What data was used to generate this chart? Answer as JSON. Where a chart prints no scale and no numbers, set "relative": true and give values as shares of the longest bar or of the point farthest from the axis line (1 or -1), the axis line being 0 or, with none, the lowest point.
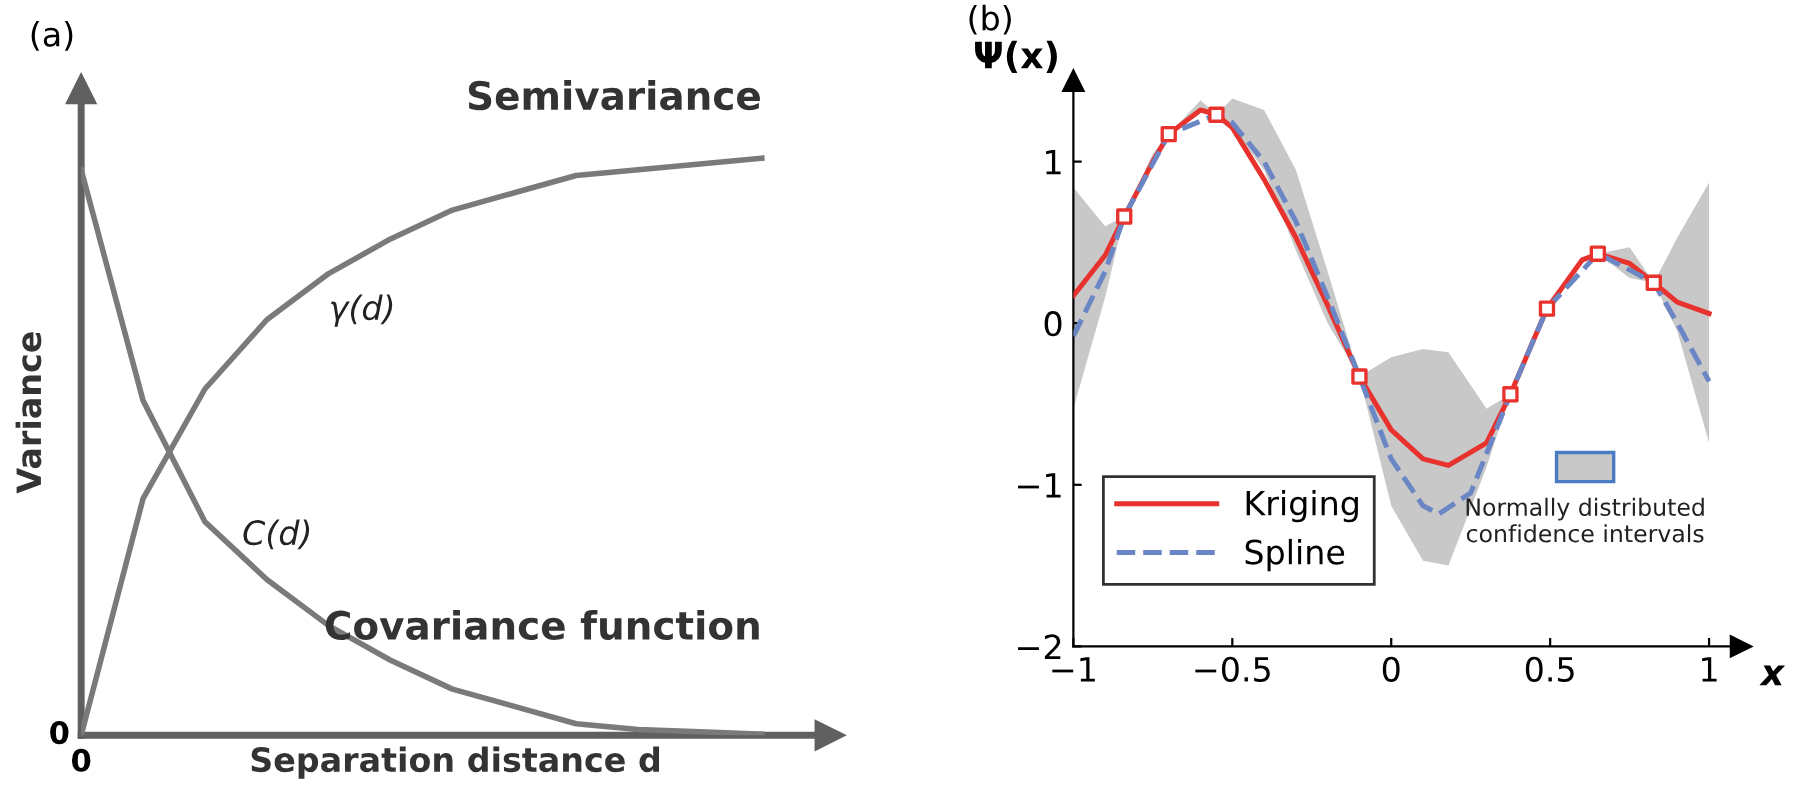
{
  "chart_data": [
    {
      "type": "line",
      "title": "(a)",
      "xlabel": "Separation distance d",
      "ylabel": "Variance",
      "relative": true,
      "legend": false,
      "grid": false,
      "categories": [
        null,
        null,
        null,
        null,
        null,
        null,
        null,
        null,
        null,
        null,
        null,
        null
      ],
      "series": [
        {
          "name": "Semivariance",
          "color": "#7a7a7a",
          "values": [
            0,
            0.41,
            0.6,
            0.72,
            0.8,
            0.86,
            0.91,
            0.94,
            0.97,
            0.98,
            0.99,
            1.0
          ]
        },
        {
          "name": "Covariance function",
          "color": "#7a7a7a",
          "values": [
            0.98,
            0.58,
            0.37,
            0.27,
            0.19,
            0.13,
            0.08,
            0.05,
            0.02,
            0.01,
            0.006,
            0.002
          ]
        }
      ],
      "annotations": [
        "γ(d)",
        "C(d)",
        "0",
        "0"
      ]
    },
    {
      "type": "line",
      "title": "(b)",
      "xlabel": "x",
      "ylabel": "Ψ(x)",
      "legend": "bottom left",
      "grid": false,
      "xlim": [
        -1,
        1.1
      ],
      "ylim": [
        -2,
        1.5
      ],
      "xticks": [
        -1,
        -0.5,
        0,
        0.5,
        1
      ],
      "yticks": [
        -2,
        -1,
        0,
        1
      ],
      "series": [
        {
          "name": "Kriging",
          "color": "#e8322d",
          "line_style": "solid",
          "marker": "none",
          "x": [
            -1,
            -0.9,
            -0.84,
            -0.75,
            -0.7,
            -0.6,
            -0.55,
            -0.5,
            -0.4,
            -0.3,
            -0.2,
            -0.1,
            0,
            0.1,
            0.18,
            0.3,
            0.375,
            0.49,
            0.6,
            0.65,
            0.75,
            0.826,
            0.9,
            1.0
          ],
          "values": [
            0.17,
            0.42,
            0.66,
            1.0,
            1.17,
            1.32,
            1.29,
            1.21,
            0.89,
            0.53,
            0.11,
            -0.33,
            -0.66,
            -0.84,
            -0.88,
            -0.74,
            -0.44,
            0.09,
            0.39,
            0.43,
            0.37,
            0.25,
            0.13,
            0.06
          ],
          "lower": [
            -0.53,
            0.16,
            0.66,
            0.97,
            1.17,
            1.3,
            1.29,
            1.21,
            0.95,
            0.45,
            0.0,
            -0.33,
            -1.13,
            -1.47,
            -1.5,
            -0.89,
            -0.44,
            0.09,
            0.37,
            0.43,
            0.28,
            0.25,
            -0.05,
            -0.74
          ],
          "upper": [
            0.84,
            0.6,
            0.66,
            1.05,
            1.17,
            1.38,
            1.29,
            1.39,
            1.32,
            0.95,
            0.32,
            -0.33,
            -0.21,
            -0.16,
            -0.18,
            -0.53,
            -0.44,
            0.09,
            0.41,
            0.43,
            0.47,
            0.25,
            0.53,
            0.87
          ]
        },
        {
          "name": "Spline",
          "color": "#6a86c4",
          "line_style": "dashed",
          "marker": "none",
          "x": [
            -1,
            -0.9,
            -0.84,
            -0.7,
            -0.55,
            -0.5,
            -0.4,
            -0.3,
            -0.2,
            -0.1,
            0,
            0.1,
            0.15,
            0.25,
            0.375,
            0.49,
            0.65,
            0.75,
            0.826,
            0.9,
            1.0
          ],
          "values": [
            -0.08,
            0.32,
            0.66,
            1.17,
            1.29,
            1.24,
            1.0,
            0.63,
            0.16,
            -0.33,
            -0.84,
            -1.13,
            -1.18,
            -1.05,
            -0.44,
            0.09,
            0.43,
            0.33,
            0.25,
            0.0,
            -0.36
          ]
        },
        {
          "type": "scatter",
          "color": "#e8322d",
          "marker": "square",
          "x": [
            -0.84,
            -0.7,
            -0.55,
            -0.1,
            0.375,
            0.49,
            0.65,
            0.826
          ],
          "values": [
            0.66,
            1.17,
            1.29,
            -0.33,
            -0.44,
            0.09,
            0.43,
            0.25
          ]
        }
      ],
      "annotations": [
        "Normally distributed\nconfidence intervals"
      ]
    }
  ]
}
